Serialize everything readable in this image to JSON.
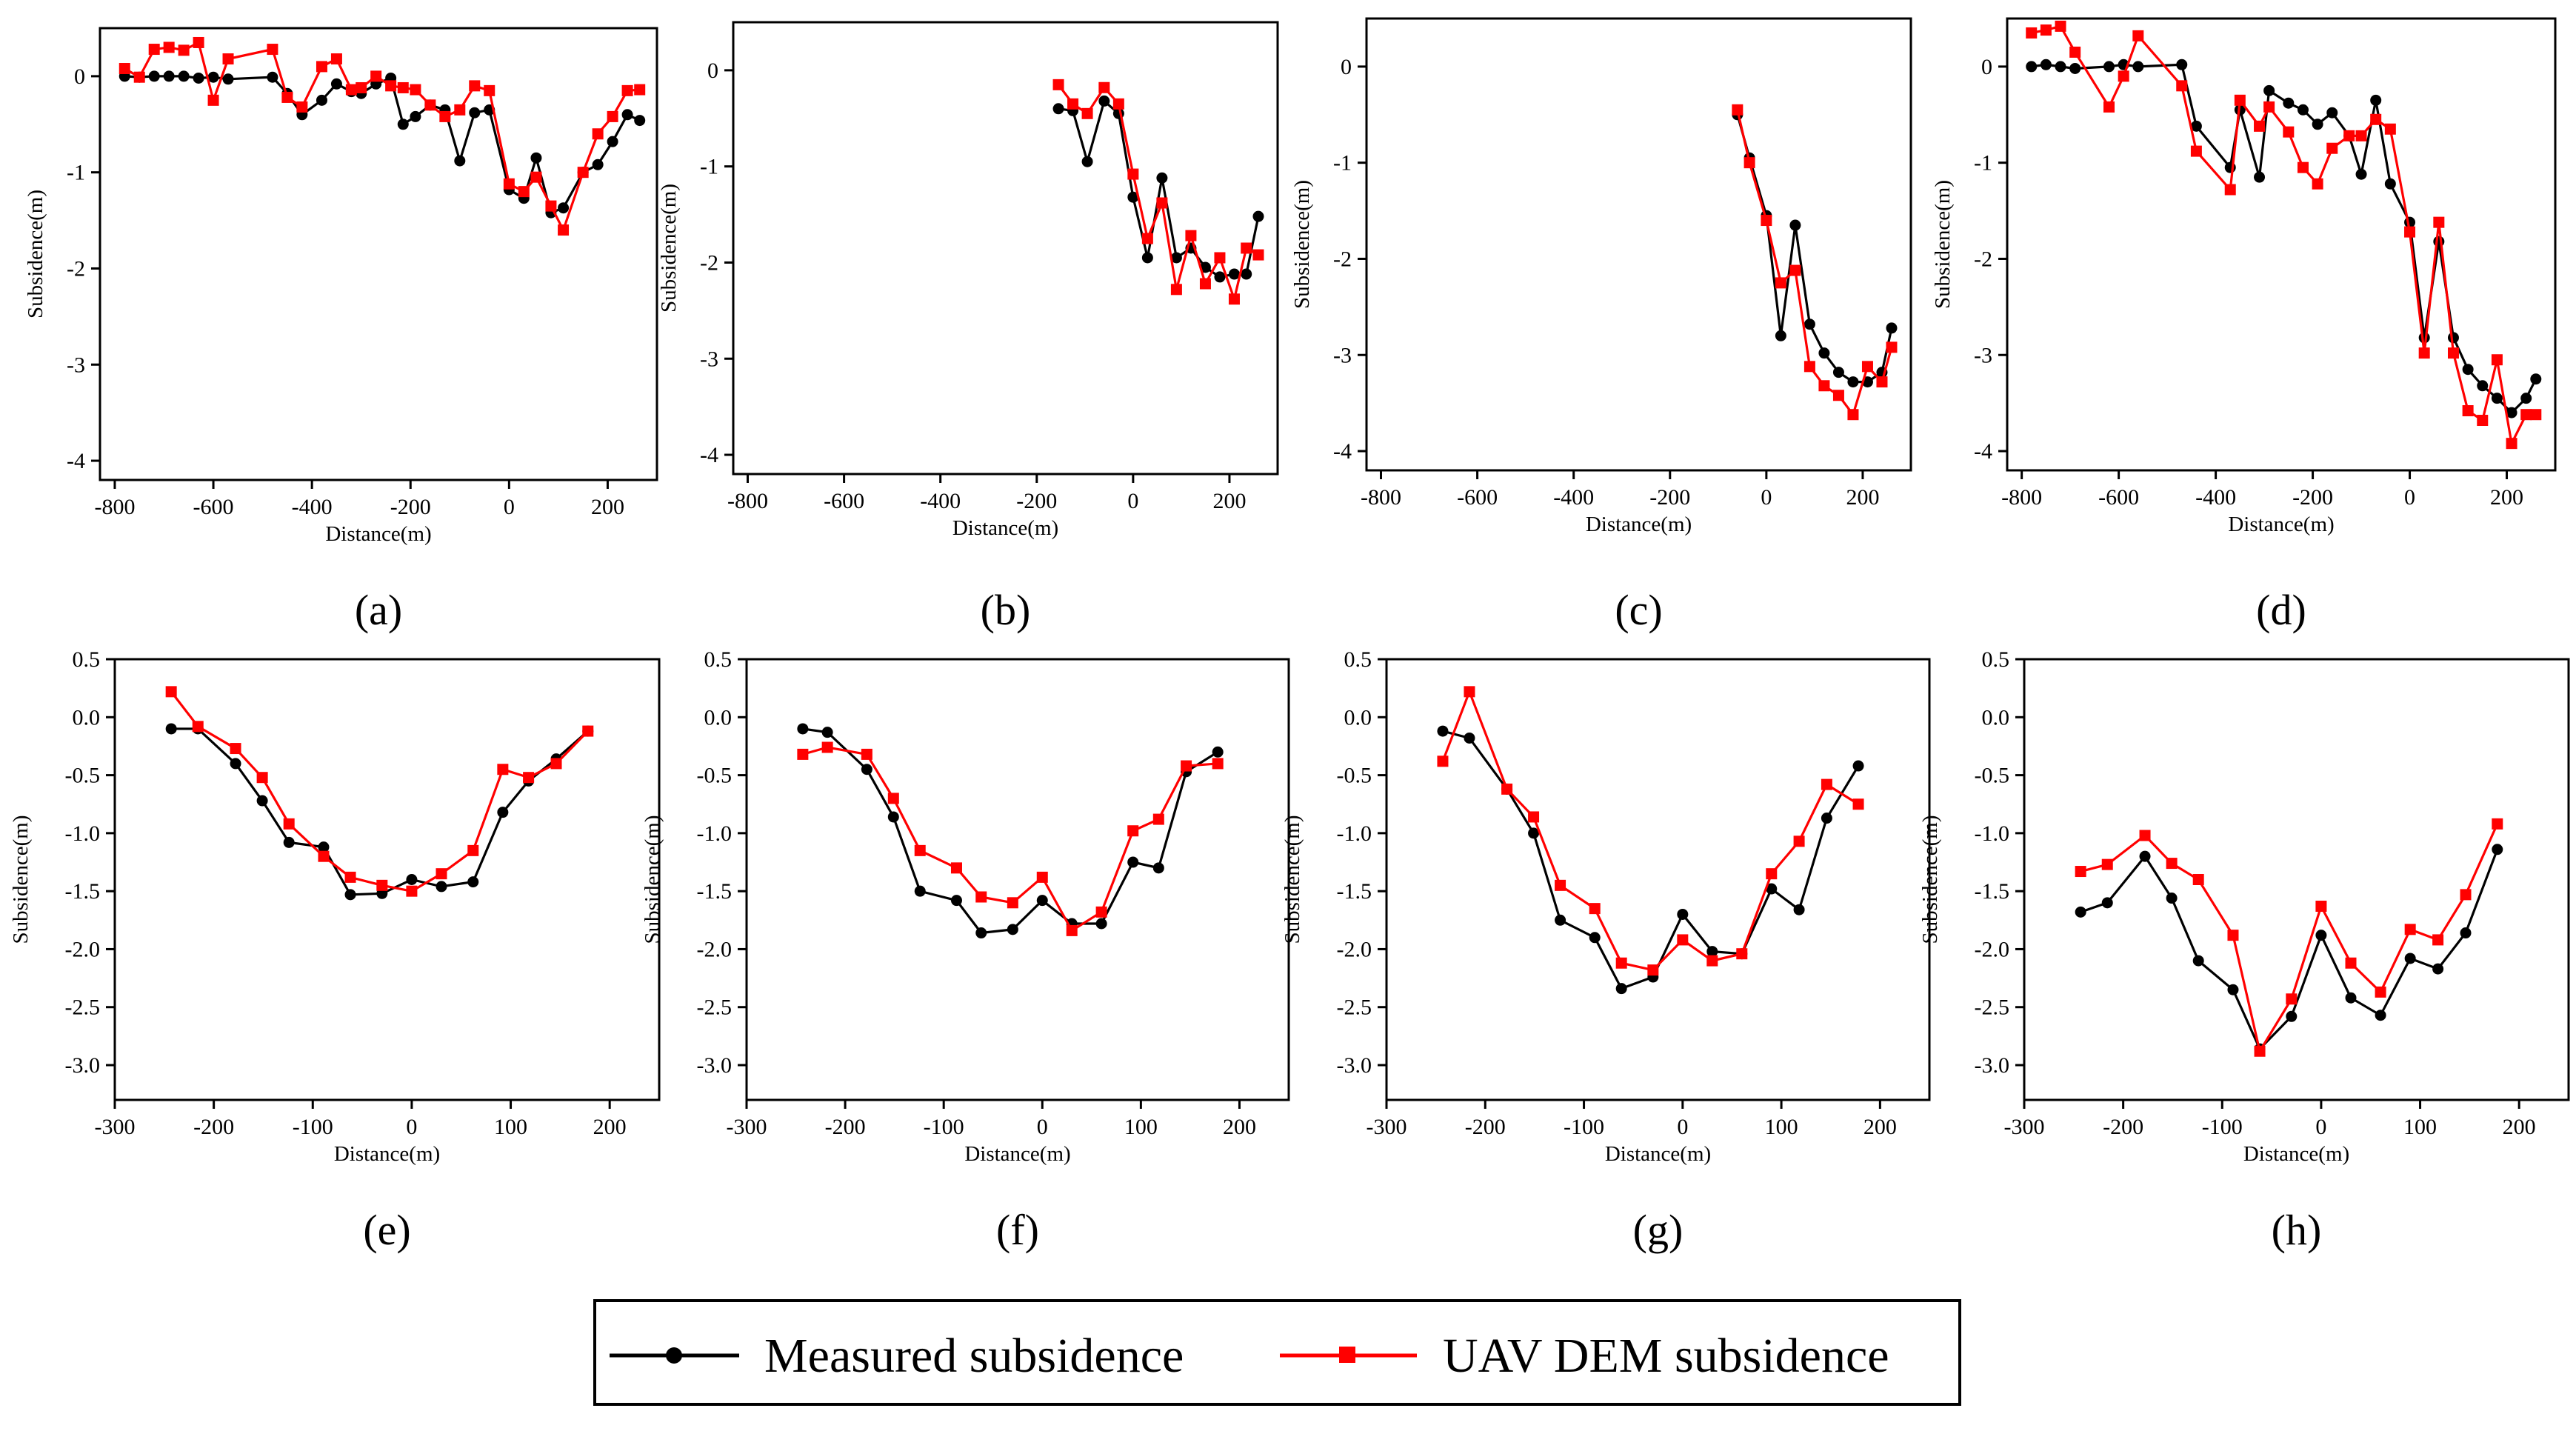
{
  "colors": {
    "measured": "#000000",
    "uav": "#ff0000",
    "frame": "#000000"
  },
  "legend": {
    "measured_label": "Measured subsidence",
    "uav_label": "UAV DEM subsidence"
  },
  "chart_data": [
    {
      "id": "a",
      "panel_label": "(a)",
      "type": "line",
      "xlabel": "Distance(m)",
      "ylabel": "Subsidence(m)",
      "xlim": [
        -830,
        300
      ],
      "ylim": [
        -4.2,
        0.5
      ],
      "xticks": [
        -800,
        -600,
        -400,
        -200,
        0,
        200
      ],
      "yticks": [
        0,
        -1,
        -2,
        -3,
        -4
      ],
      "series": [
        {
          "name": "Measured subsidence",
          "x": [
            -780,
            -750,
            -720,
            -690,
            -660,
            -630,
            -600,
            -570,
            -480,
            -450,
            -420,
            -380,
            -350,
            -320,
            -300,
            -270,
            -240,
            -215,
            -190,
            -160,
            -130,
            -100,
            -70,
            -40,
            0,
            30,
            55,
            85,
            110,
            150,
            180,
            210,
            240,
            265
          ],
          "y": [
            0.0,
            -0.01,
            0.0,
            0.0,
            0.0,
            -0.02,
            -0.01,
            -0.03,
            -0.01,
            -0.18,
            -0.4,
            -0.25,
            -0.08,
            -0.16,
            -0.18,
            -0.08,
            -0.02,
            -0.5,
            -0.42,
            -0.3,
            -0.35,
            -0.88,
            -0.38,
            -0.35,
            -1.18,
            -1.27,
            -0.85,
            -1.42,
            -1.37,
            -1.0,
            -0.92,
            -0.68,
            -0.4,
            -0.46
          ]
        },
        {
          "name": "UAV DEM subsidence",
          "x": [
            -780,
            -750,
            -720,
            -690,
            -660,
            -630,
            -600,
            -570,
            -480,
            -450,
            -420,
            -380,
            -350,
            -320,
            -300,
            -270,
            -240,
            -215,
            -190,
            -160,
            -130,
            -100,
            -70,
            -40,
            0,
            30,
            55,
            85,
            110,
            150,
            180,
            210,
            240,
            265
          ],
          "y": [
            0.08,
            -0.01,
            0.28,
            0.3,
            0.27,
            0.35,
            -0.25,
            0.18,
            0.28,
            -0.22,
            -0.32,
            0.1,
            0.18,
            -0.14,
            -0.12,
            0.0,
            -0.1,
            -0.12,
            -0.14,
            -0.3,
            -0.42,
            -0.35,
            -0.1,
            -0.15,
            -1.12,
            -1.2,
            -1.05,
            -1.35,
            -1.6,
            -1.0,
            -0.6,
            -0.42,
            -0.15,
            -0.14
          ]
        }
      ]
    },
    {
      "id": "b",
      "panel_label": "(b)",
      "type": "line",
      "xlabel": "Distance(m)",
      "ylabel": "Subsidence(m)",
      "xlim": [
        -830,
        300
      ],
      "ylim": [
        -4.2,
        0.5
      ],
      "xticks": [
        -800,
        -600,
        -400,
        -200,
        0,
        200
      ],
      "yticks": [
        0,
        -1,
        -2,
        -3,
        -4
      ],
      "series": [
        {
          "name": "Measured subsidence",
          "x": [
            -155,
            -125,
            -95,
            -60,
            -30,
            0,
            30,
            60,
            90,
            120,
            150,
            180,
            210,
            235,
            260
          ],
          "y": [
            -0.4,
            -0.42,
            -0.95,
            -0.32,
            -0.45,
            -1.32,
            -1.95,
            -1.12,
            -1.95,
            -1.85,
            -2.05,
            -2.15,
            -2.12,
            -2.12,
            -1.52
          ]
        },
        {
          "name": "UAV DEM subsidence",
          "x": [
            -155,
            -125,
            -95,
            -60,
            -30,
            0,
            30,
            60,
            90,
            120,
            150,
            180,
            210,
            235,
            260
          ],
          "y": [
            -0.15,
            -0.35,
            -0.45,
            -0.18,
            -0.35,
            -1.08,
            -1.75,
            -1.38,
            -2.28,
            -1.72,
            -2.22,
            -1.95,
            -2.38,
            -1.85,
            -1.92
          ]
        }
      ]
    },
    {
      "id": "c",
      "panel_label": "(c)",
      "type": "line",
      "xlabel": "Distance(m)",
      "ylabel": "Subsidence(m)",
      "xlim": [
        -830,
        300
      ],
      "ylim": [
        -4.2,
        0.5
      ],
      "xticks": [
        -800,
        -600,
        -400,
        -200,
        0,
        200
      ],
      "yticks": [
        0,
        -1,
        -2,
        -3,
        -4
      ],
      "series": [
        {
          "name": "Measured subsidence",
          "x": [
            -60,
            -35,
            0,
            30,
            60,
            90,
            120,
            150,
            180,
            210,
            240,
            260
          ],
          "y": [
            -0.5,
            -0.95,
            -1.55,
            -2.8,
            -1.65,
            -2.68,
            -2.98,
            -3.18,
            -3.28,
            -3.28,
            -3.18,
            -2.72
          ]
        },
        {
          "name": "UAV DEM subsidence",
          "x": [
            -60,
            -35,
            0,
            30,
            60,
            90,
            120,
            150,
            180,
            210,
            240,
            260
          ],
          "y": [
            -0.45,
            -1.0,
            -1.6,
            -2.25,
            -2.12,
            -3.12,
            -3.32,
            -3.42,
            -3.62,
            -3.12,
            -3.28,
            -2.92
          ]
        }
      ]
    },
    {
      "id": "d",
      "panel_label": "(d)",
      "type": "line",
      "xlabel": "Distance(m)",
      "ylabel": "Subsidence(m)",
      "xlim": [
        -830,
        300
      ],
      "ylim": [
        -4.2,
        0.5
      ],
      "xticks": [
        -800,
        -600,
        -400,
        -200,
        0,
        200
      ],
      "yticks": [
        0,
        -1,
        -2,
        -3,
        -4
      ],
      "series": [
        {
          "name": "Measured subsidence",
          "x": [
            -780,
            -750,
            -720,
            -690,
            -620,
            -590,
            -560,
            -470,
            -440,
            -370,
            -350,
            -310,
            -290,
            -250,
            -220,
            -190,
            -160,
            -125,
            -100,
            -70,
            -40,
            0,
            30,
            60,
            90,
            120,
            150,
            180,
            210,
            240,
            260
          ],
          "y": [
            0.0,
            0.02,
            0.0,
            -0.02,
            0.0,
            0.02,
            0.0,
            0.02,
            -0.62,
            -1.05,
            -0.45,
            -1.15,
            -0.25,
            -0.38,
            -0.45,
            -0.6,
            -0.48,
            -0.72,
            -1.12,
            -0.35,
            -1.22,
            -1.62,
            -2.82,
            -1.82,
            -2.82,
            -3.15,
            -3.32,
            -3.45,
            -3.6,
            -3.45,
            -3.25
          ]
        },
        {
          "name": "UAV DEM subsidence",
          "x": [
            -780,
            -750,
            -720,
            -690,
            -620,
            -590,
            -560,
            -470,
            -440,
            -370,
            -350,
            -310,
            -290,
            -250,
            -220,
            -190,
            -160,
            -125,
            -100,
            -70,
            -40,
            0,
            30,
            60,
            90,
            120,
            150,
            180,
            210,
            240,
            260
          ],
          "y": [
            0.35,
            0.38,
            0.42,
            0.15,
            -0.42,
            -0.1,
            0.32,
            -0.2,
            -0.88,
            -1.28,
            -0.35,
            -0.62,
            -0.42,
            -0.68,
            -1.05,
            -1.22,
            -0.85,
            -0.72,
            -0.72,
            -0.55,
            -0.65,
            -1.72,
            -2.98,
            -1.62,
            -2.98,
            -3.58,
            -3.68,
            -3.05,
            -3.92,
            -3.62,
            -3.62
          ]
        }
      ]
    },
    {
      "id": "e",
      "panel_label": "(e)",
      "type": "line",
      "xlabel": "Distance(m)",
      "ylabel": "Subsidence(m)",
      "xlim": [
        -300,
        250
      ],
      "ylim": [
        -3.3,
        0.5
      ],
      "xticks": [
        -300,
        -200,
        -100,
        0,
        100,
        200
      ],
      "yticks": [
        0.5,
        0.0,
        -0.5,
        -1.0,
        -1.5,
        -2.0,
        -2.5,
        -3.0
      ],
      "series": [
        {
          "name": "Measured subsidence",
          "x": [
            -243,
            -216,
            -178,
            -151,
            -124,
            -89,
            -62,
            -30,
            0,
            30,
            62,
            92,
            118,
            146,
            178
          ],
          "y": [
            -0.1,
            -0.1,
            -0.4,
            -0.72,
            -1.08,
            -1.12,
            -1.53,
            -1.52,
            -1.4,
            -1.46,
            -1.42,
            -0.82,
            -0.55,
            -0.36,
            -0.12
          ]
        },
        {
          "name": "UAV DEM subsidence",
          "x": [
            -243,
            -216,
            -178,
            -151,
            -124,
            -89,
            -62,
            -30,
            0,
            30,
            62,
            92,
            118,
            146,
            178
          ],
          "y": [
            0.22,
            -0.08,
            -0.27,
            -0.52,
            -0.92,
            -1.2,
            -1.38,
            -1.45,
            -1.5,
            -1.35,
            -1.15,
            -0.45,
            -0.52,
            -0.4,
            -0.12
          ]
        }
      ]
    },
    {
      "id": "f",
      "panel_label": "(f)",
      "type": "line",
      "xlabel": "Distance(m)",
      "ylabel": "Subsidence(m)",
      "xlim": [
        -300,
        250
      ],
      "ylim": [
        -3.3,
        0.5
      ],
      "xticks": [
        -300,
        -200,
        -100,
        0,
        100,
        200
      ],
      "yticks": [
        0.5,
        0.0,
        -0.5,
        -1.0,
        -1.5,
        -2.0,
        -2.5,
        -3.0
      ],
      "series": [
        {
          "name": "Measured subsidence",
          "x": [
            -243,
            -218,
            -178,
            -151,
            -124,
            -87,
            -62,
            -30,
            0,
            30,
            60,
            92,
            118,
            146,
            178
          ],
          "y": [
            -0.1,
            -0.13,
            -0.45,
            -0.86,
            -1.5,
            -1.58,
            -1.86,
            -1.83,
            -1.58,
            -1.78,
            -1.78,
            -1.25,
            -1.3,
            -0.47,
            -0.3
          ]
        },
        {
          "name": "UAV DEM subsidence",
          "x": [
            -243,
            -218,
            -178,
            -151,
            -124,
            -87,
            -62,
            -30,
            0,
            30,
            60,
            92,
            118,
            146,
            178
          ],
          "y": [
            -0.32,
            -0.26,
            -0.32,
            -0.7,
            -1.15,
            -1.3,
            -1.55,
            -1.6,
            -1.38,
            -1.84,
            -1.68,
            -0.98,
            -0.88,
            -0.42,
            -0.4
          ]
        }
      ]
    },
    {
      "id": "g",
      "panel_label": "(g)",
      "type": "line",
      "xlabel": "Distance(m)",
      "ylabel": "Subsidence(m)",
      "xlim": [
        -300,
        250
      ],
      "ylim": [
        -3.3,
        0.5
      ],
      "xticks": [
        -300,
        -200,
        -100,
        0,
        100,
        200
      ],
      "yticks": [
        0.5,
        0.0,
        -0.5,
        -1.0,
        -1.5,
        -2.0,
        -2.5,
        -3.0
      ],
      "series": [
        {
          "name": "Measured subsidence",
          "x": [
            -243,
            -216,
            -178,
            -151,
            -124,
            -89,
            -62,
            -30,
            0,
            30,
            60,
            90,
            118,
            146,
            178
          ],
          "y": [
            -0.12,
            -0.18,
            -0.62,
            -1.0,
            -1.75,
            -1.9,
            -2.34,
            -2.24,
            -1.7,
            -2.02,
            -2.04,
            -1.48,
            -1.66,
            -0.87,
            -0.42
          ]
        },
        {
          "name": "UAV DEM subsidence",
          "x": [
            -243,
            -216,
            -178,
            -151,
            -124,
            -89,
            -62,
            -30,
            0,
            30,
            60,
            90,
            118,
            146,
            178
          ],
          "y": [
            -0.38,
            0.22,
            -0.62,
            -0.86,
            -1.45,
            -1.65,
            -2.12,
            -2.18,
            -1.92,
            -2.1,
            -2.04,
            -1.35,
            -1.07,
            -0.58,
            -0.75
          ]
        }
      ]
    },
    {
      "id": "h",
      "panel_label": "(h)",
      "type": "line",
      "xlabel": "Distance(m)",
      "ylabel": "Subsidence(m)",
      "xlim": [
        -300,
        250
      ],
      "ylim": [
        -3.3,
        0.5
      ],
      "xticks": [
        -300,
        -200,
        -100,
        0,
        100,
        200
      ],
      "yticks": [
        0.5,
        0.0,
        -0.5,
        -1.0,
        -1.5,
        -2.0,
        -2.5,
        -3.0
      ],
      "series": [
        {
          "name": "Measured subsidence",
          "x": [
            -243,
            -216,
            -178,
            -151,
            -124,
            -89,
            -62,
            -30,
            0,
            30,
            60,
            90,
            118,
            146,
            178
          ],
          "y": [
            -1.68,
            -1.6,
            -1.2,
            -1.56,
            -2.1,
            -2.35,
            -2.86,
            -2.58,
            -1.88,
            -2.42,
            -2.57,
            -2.08,
            -2.17,
            -1.86,
            -1.14
          ]
        },
        {
          "name": "UAV DEM subsidence",
          "x": [
            -243,
            -216,
            -178,
            -151,
            -124,
            -89,
            -62,
            -30,
            0,
            30,
            60,
            90,
            118,
            146,
            178
          ],
          "y": [
            -1.33,
            -1.27,
            -1.02,
            -1.26,
            -1.4,
            -1.88,
            -2.88,
            -2.43,
            -1.63,
            -2.12,
            -2.37,
            -1.83,
            -1.92,
            -1.53,
            -0.92
          ]
        }
      ]
    }
  ]
}
